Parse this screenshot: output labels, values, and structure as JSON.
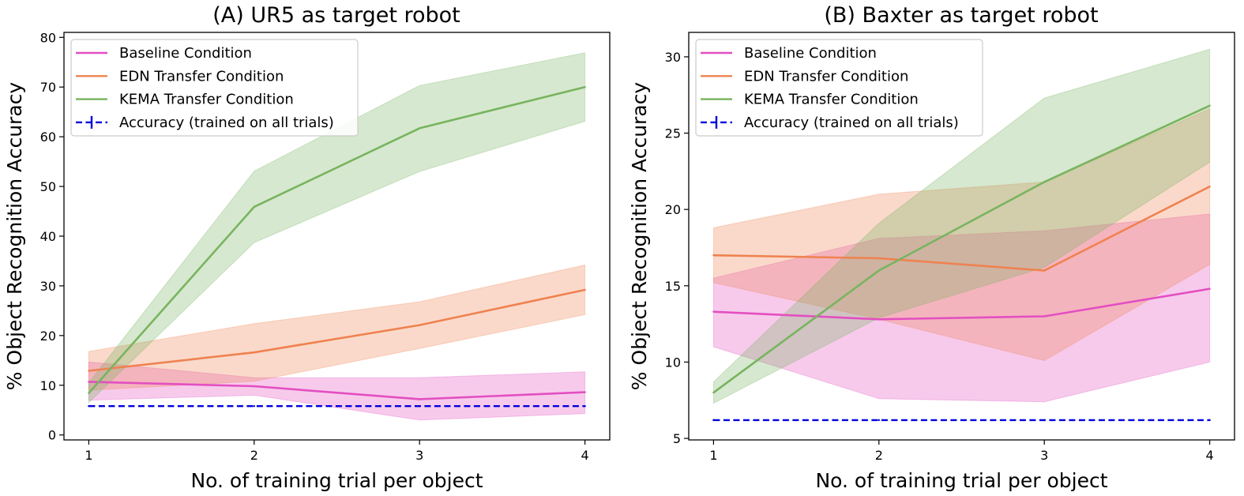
{
  "colors": {
    "baseline": "#e34fc1",
    "edn": "#ef8250",
    "kema": "#78b45f",
    "accuracy": "#0000dd"
  },
  "chart_data": [
    {
      "type": "line",
      "title": "(A) UR5 as target robot",
      "xlabel": "No. of training trial per object",
      "ylabel": "% Object Recognition Accuracy",
      "x": [
        1,
        2,
        3,
        4
      ],
      "xticks": [
        1,
        2,
        3,
        4
      ],
      "xlim": [
        0.85,
        4.15
      ],
      "ylim": [
        -1,
        81
      ],
      "yticks": [
        0,
        10,
        20,
        30,
        40,
        50,
        60,
        70,
        80
      ],
      "grid": false,
      "legend_position": "top-left",
      "series": [
        {
          "name": "Baseline Condition",
          "color_key": "baseline",
          "values": [
            10.7,
            9.8,
            7.2,
            8.6
          ],
          "lower": [
            7.0,
            8.0,
            3.0,
            4.3
          ],
          "upper": [
            14.7,
            11.5,
            11.5,
            12.7
          ]
        },
        {
          "name": "EDN Transfer Condition",
          "color_key": "edn",
          "values": [
            12.9,
            16.6,
            22.1,
            29.2
          ],
          "lower": [
            9.0,
            10.8,
            17.4,
            24.2
          ],
          "upper": [
            16.8,
            22.4,
            26.8,
            34.2
          ]
        },
        {
          "name": "KEMA Transfer Condition",
          "color_key": "kema",
          "values": [
            8.4,
            45.9,
            61.7,
            70.0
          ],
          "lower": [
            6.5,
            38.7,
            53.0,
            63.1
          ],
          "upper": [
            10.5,
            53.1,
            70.3,
            76.9
          ]
        },
        {
          "name": "Accuracy (trained on all trials)",
          "color_key": "accuracy",
          "dashed": true,
          "values": [
            5.8,
            5.8,
            5.8,
            5.8
          ]
        }
      ]
    },
    {
      "type": "line",
      "title": "(B) Baxter as target robot",
      "xlabel": "No. of training trial per object",
      "ylabel": "% Object Recognition Accuracy",
      "x": [
        1,
        2,
        3,
        4
      ],
      "xticks": [
        1,
        2,
        3,
        4
      ],
      "xlim": [
        0.85,
        4.15
      ],
      "ylim": [
        4.9,
        31.6
      ],
      "yticks": [
        5,
        10,
        15,
        20,
        25,
        30
      ],
      "grid": false,
      "legend_position": "top-left",
      "series": [
        {
          "name": "Baseline Condition",
          "color_key": "baseline",
          "values": [
            13.3,
            12.8,
            13.0,
            14.8
          ],
          "lower": [
            11.0,
            7.6,
            7.4,
            10.0
          ],
          "upper": [
            15.5,
            18.1,
            18.6,
            19.7
          ]
        },
        {
          "name": "EDN Transfer Condition",
          "color_key": "edn",
          "values": [
            17.0,
            16.8,
            16.0,
            21.5
          ],
          "lower": [
            15.2,
            12.8,
            10.1,
            16.4
          ],
          "upper": [
            18.8,
            21.0,
            21.8,
            26.6
          ]
        },
        {
          "name": "KEMA Transfer Condition",
          "color_key": "kema",
          "values": [
            8.0,
            16.0,
            21.8,
            26.8
          ],
          "lower": [
            7.3,
            12.9,
            16.2,
            23.1
          ],
          "upper": [
            8.7,
            19.1,
            27.3,
            30.5
          ]
        },
        {
          "name": "Accuracy (trained on all trials)",
          "color_key": "accuracy",
          "dashed": true,
          "values": [
            6.2,
            6.2,
            6.2,
            6.2
          ]
        }
      ]
    }
  ]
}
